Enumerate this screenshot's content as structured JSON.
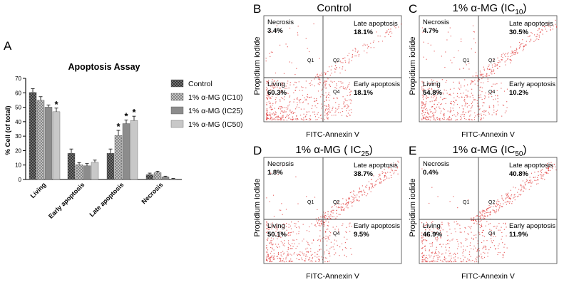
{
  "bar_panel": {
    "letter": "A",
    "title": "Apoptosis Assay",
    "ylabel": "% Cell (of total)",
    "yticks": [
      "0",
      "10",
      "20",
      "30",
      "40",
      "50",
      "60",
      "70"
    ],
    "asterisk": "*"
  },
  "chart_data": [
    {
      "type": "bar",
      "title": "Apoptosis Assay",
      "xlabel": "",
      "ylabel": "% Cell (of total)",
      "ylim": [
        0,
        70
      ],
      "categories": [
        "Living",
        "Early apoptosis",
        "Late apoptosis",
        "Necrosis"
      ],
      "series": [
        {
          "name": "Control",
          "values": [
            60.3,
            18.1,
            18.1,
            3.4
          ],
          "errors": [
            2.5,
            3,
            3,
            1
          ],
          "color": "#3a3a3a",
          "pattern": "crosshatch-dark"
        },
        {
          "name": "1% α-MG (IC10)",
          "values": [
            54.8,
            10.2,
            30.5,
            4.7
          ],
          "errors": [
            2.5,
            1.5,
            3.5,
            1
          ],
          "color": "#9a9a9a",
          "pattern": "crosshatch-light"
        },
        {
          "name": "1% α-MG (IC25)",
          "values": [
            50.1,
            9.5,
            38.7,
            1.8
          ],
          "errors": [
            1.5,
            1.5,
            2.5,
            0.5
          ],
          "color": "#8c8c8c",
          "pattern": "solid"
        },
        {
          "name": "1% α-MG (IC50)",
          "values": [
            46.9,
            11.9,
            40.8,
            0.4
          ],
          "errors": [
            2.5,
            1.5,
            3,
            0.3
          ],
          "color": "#c8c8c8",
          "pattern": "solid"
        }
      ],
      "significant": [
        {
          "category": "Living",
          "series": "1% α-MG (IC50)"
        },
        {
          "category": "Late apoptosis",
          "series": "1% α-MG (IC10)"
        },
        {
          "category": "Late apoptosis",
          "series": "1% α-MG (IC25)"
        },
        {
          "category": "Late apoptosis",
          "series": "1% α-MG (IC50)"
        }
      ]
    },
    {
      "type": "scatter",
      "panel": "B",
      "title": "Control",
      "xlabel": "FITC-Annexin V",
      "ylabel": "Propidium iodide",
      "quadrants": {
        "necrosis": 3.4,
        "late_apoptosis": 18.1,
        "living": 60.3,
        "early_apoptosis": 18.1
      }
    },
    {
      "type": "scatter",
      "panel": "C",
      "title": "1% α-MG (IC10)",
      "xlabel": "FITC-Annexin V",
      "ylabel": "Propidium iodide",
      "quadrants": {
        "necrosis": 4.7,
        "late_apoptosis": 30.5,
        "living": 54.8,
        "early_apoptosis": 10.2
      }
    },
    {
      "type": "scatter",
      "panel": "D",
      "title": "1% α-MG ( IC25)",
      "xlabel": "FITC-Annexin V",
      "ylabel": "Propidium iodide",
      "quadrants": {
        "necrosis": 1.8,
        "late_apoptosis": 38.7,
        "living": 50.1,
        "early_apoptosis": 9.5
      }
    },
    {
      "type": "scatter",
      "panel": "E",
      "title": "1% α-MG (IC50)",
      "xlabel": "FITC-Annexin V",
      "ylabel": "Propidium iodide",
      "quadrants": {
        "necrosis": 0.4,
        "late_apoptosis": 40.8,
        "living": 46.9,
        "early_apoptosis": 11.9
      }
    }
  ],
  "flow_panels": [
    {
      "letter": "B",
      "title_main": "Control",
      "title_sub": "",
      "title_end": "",
      "necrosis_label": "Necrosis",
      "necrosis_pct": "3.4%",
      "late_label": "Late apoptosis",
      "late_pct": "18.1%",
      "living_label": "Living",
      "living_pct": "60.3%",
      "early_label": "Early apoptosis",
      "early_pct": "18.1%",
      "q1": "Q1",
      "q2": "Q2",
      "q4": "Q4",
      "xlabel": "FITC-Annexin V",
      "ylabel": "Propidium iodide"
    },
    {
      "letter": "C",
      "title_main": "1% α-MG (IC",
      "title_sub": "10",
      "title_end": ")",
      "necrosis_label": "Necrosis",
      "necrosis_pct": "4.7%",
      "late_label": "Late apoptosis",
      "late_pct": "30.5%",
      "living_label": "Living",
      "living_pct": "54.8%",
      "early_label": "Early apoptosis",
      "early_pct": "10.2%",
      "q1": "Q1",
      "q2": "Q2",
      "q4": "Q4",
      "xlabel": "FITC-Annexin V",
      "ylabel": "Propidium iodide"
    },
    {
      "letter": "D",
      "title_main": "1% α-MG ( IC",
      "title_sub": "25",
      "title_end": ")",
      "necrosis_label": "Necrosis",
      "necrosis_pct": "1.8%",
      "late_label": "Late apoptosis",
      "late_pct": "38.7%",
      "living_label": "Living",
      "living_pct": "50.1%",
      "early_label": "Early apoptosis",
      "early_pct": "9.5%",
      "q1": "Q1",
      "q2": "Q2",
      "q4": "Q4",
      "xlabel": "FITC-Annexin V",
      "ylabel": "Propidium iodide"
    },
    {
      "letter": "E",
      "title_main": "1% α-MG (IC",
      "title_sub": "50",
      "title_end": ")",
      "necrosis_label": "Necrosis",
      "necrosis_pct": "0.4%",
      "late_label": "Late apoptosis",
      "late_pct": "40.8%",
      "living_label": "Living",
      "living_pct": "46.9%",
      "early_label": "Early apoptosis",
      "early_pct": "11.9%",
      "q1": "Q1",
      "q2": "Q2",
      "q4": "Q4",
      "xlabel": "FITC-Annexin V",
      "ylabel": "Propidium iodide"
    }
  ]
}
